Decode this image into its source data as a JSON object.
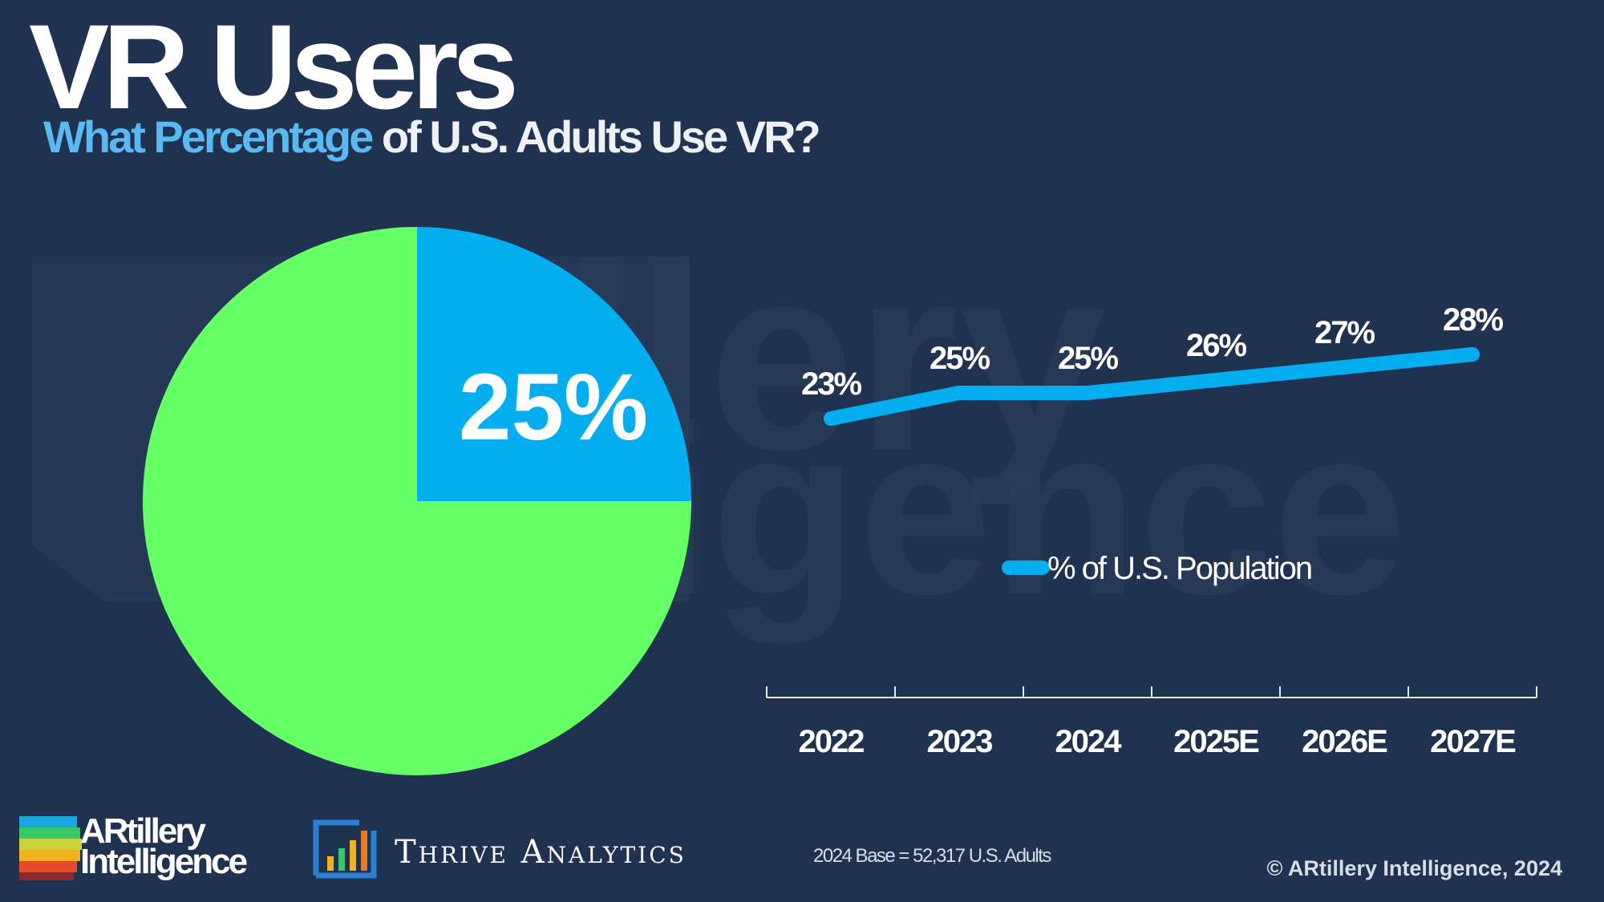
{
  "header": {
    "title": "VR Users",
    "subtitle_highlight": "What Percentage",
    "subtitle_rest": " of U.S. Adults Use VR?"
  },
  "colors": {
    "background": "#1f3350",
    "accent_blue": "#03aef0",
    "pie_green": "#66ff66",
    "subtitle_blue": "#5ab9f0"
  },
  "chart_data": [
    {
      "type": "pie",
      "slices": [
        {
          "label": "25%",
          "value": 25,
          "color": "#03aef0"
        },
        {
          "value": 75,
          "color": "#66ff66"
        }
      ]
    },
    {
      "type": "line",
      "categories": [
        "2022",
        "2023",
        "2024",
        "2025E",
        "2026E",
        "2027E"
      ],
      "series": [
        {
          "name": "% of U.S. Population",
          "values": [
            23,
            25,
            25,
            26,
            27,
            28
          ],
          "labels": [
            "23%",
            "25%",
            "25%",
            "26%",
            "27%",
            "28%"
          ],
          "color": "#03aef0"
        }
      ],
      "legend": "center"
    }
  ],
  "footer": {
    "base_note": "2024 Base = 52,317 U.S. Adults",
    "copyright": "© ARtillery Intelligence, 2024",
    "logo1_line1": "ARtillery",
    "logo1_line2": "Intelligence",
    "logo2": "Thrive Analytics"
  },
  "watermark": {
    "text": "ARtillery Intelligence"
  }
}
